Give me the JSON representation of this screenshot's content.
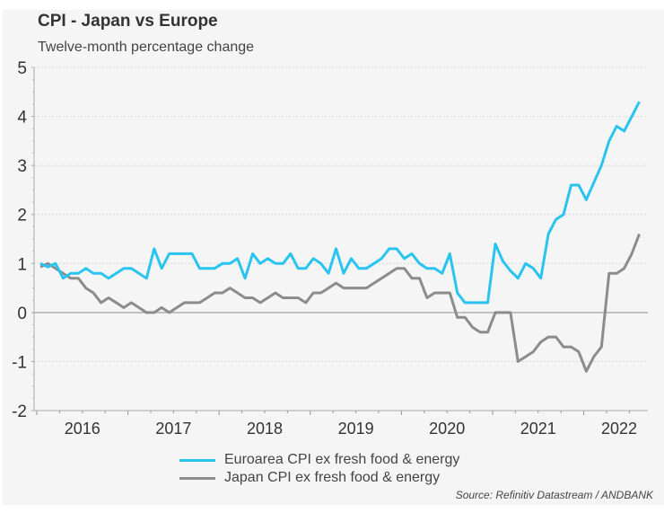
{
  "chart_data": {
    "type": "line",
    "title": "CPI - Japan vs Europe",
    "subtitle": "Twelve-month percentage change",
    "xlabel": "",
    "ylabel": "",
    "ylim": [
      -2,
      5
    ],
    "yticks": [
      "5",
      "4",
      "3",
      "2",
      "1",
      "0",
      "-1",
      "-2"
    ],
    "ytick_values": [
      5,
      4,
      3,
      2,
      1,
      0,
      -1,
      -2
    ],
    "xticks": [
      "2016",
      "2017",
      "2018",
      "2019",
      "2020",
      "2021",
      "2022"
    ],
    "x_start": "2016-01",
    "x_frequency": "monthly",
    "grid": true,
    "legend_position": "bottom",
    "series": [
      {
        "name": "Euroarea CPI ex fresh food & energy",
        "color": "#29c4ef",
        "values": [
          1.0,
          0.93,
          1.0,
          0.7,
          0.8,
          0.8,
          0.9,
          0.8,
          0.8,
          0.7,
          0.8,
          0.9,
          0.9,
          0.8,
          0.7,
          1.3,
          0.9,
          1.2,
          1.2,
          1.2,
          1.2,
          0.9,
          0.9,
          0.9,
          1.0,
          1.0,
          1.1,
          0.7,
          1.2,
          1.0,
          1.1,
          1.0,
          1.0,
          1.2,
          0.9,
          0.9,
          1.1,
          1.0,
          0.8,
          1.3,
          0.8,
          1.1,
          0.9,
          0.9,
          1.0,
          1.1,
          1.3,
          1.3,
          1.1,
          1.2,
          1.0,
          0.9,
          0.9,
          0.8,
          1.2,
          0.4,
          0.2,
          0.2,
          0.2,
          0.2,
          1.4,
          1.05,
          0.85,
          0.7,
          1.0,
          0.9,
          0.7,
          1.6,
          1.9,
          2.0,
          2.6,
          2.6,
          2.3,
          2.65,
          3.0,
          3.5,
          3.8,
          3.7,
          4.0,
          4.3
        ]
      },
      {
        "name": "Japan CPI ex fresh food & energy",
        "color": "#8c8c8c",
        "values": [
          0.93,
          1.0,
          0.9,
          0.8,
          0.7,
          0.7,
          0.5,
          0.4,
          0.2,
          0.3,
          0.2,
          0.1,
          0.2,
          0.1,
          0.0,
          0.0,
          0.1,
          0.0,
          0.1,
          0.2,
          0.2,
          0.2,
          0.3,
          0.4,
          0.4,
          0.5,
          0.4,
          0.3,
          0.3,
          0.2,
          0.3,
          0.4,
          0.3,
          0.3,
          0.3,
          0.2,
          0.4,
          0.4,
          0.5,
          0.6,
          0.5,
          0.5,
          0.5,
          0.5,
          0.6,
          0.7,
          0.8,
          0.9,
          0.9,
          0.7,
          0.7,
          0.3,
          0.4,
          0.4,
          0.4,
          -0.1,
          -0.1,
          -0.3,
          -0.4,
          -0.4,
          0.0,
          0.0,
          0.0,
          -1.0,
          -0.9,
          -0.8,
          -0.6,
          -0.5,
          -0.5,
          -0.7,
          -0.7,
          -0.8,
          -1.2,
          -0.9,
          -0.7,
          0.8,
          0.8,
          0.9,
          1.2,
          1.6
        ]
      }
    ],
    "source": "Source: Refinitiv Datastream / ANDBANK"
  }
}
